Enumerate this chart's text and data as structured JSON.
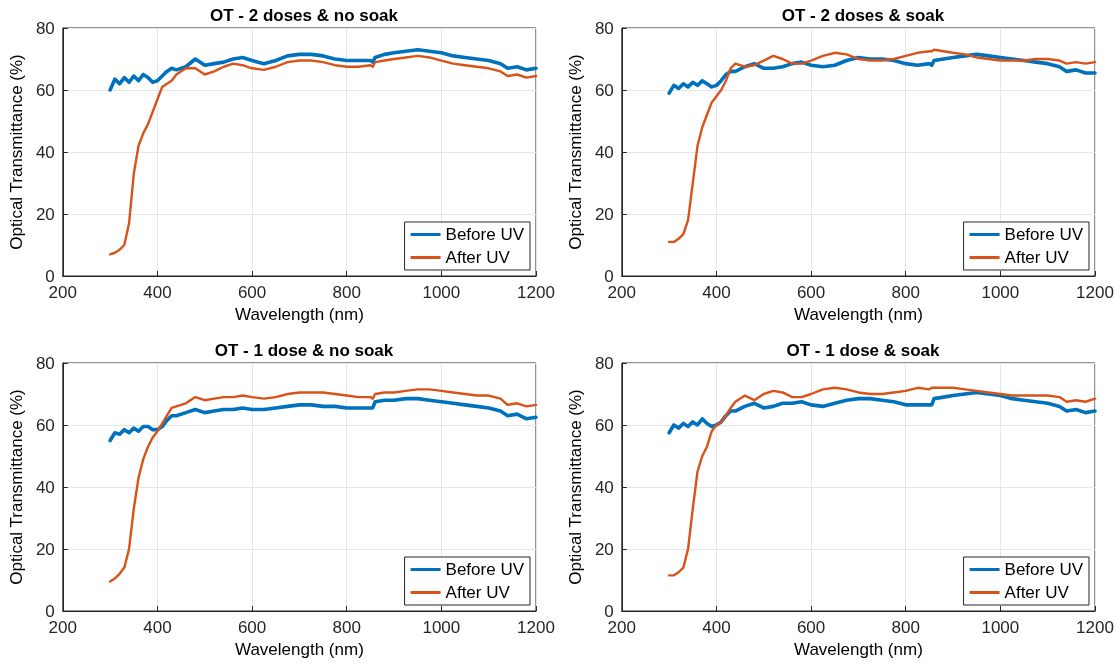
{
  "chart_data": [
    {
      "type": "line",
      "title": "OT - 2 doses & no soak",
      "xlabel": "Wavelength (nm)",
      "ylabel": "Optical Transmittance (%)",
      "xlim": [
        200,
        1200
      ],
      "xticks": [
        200,
        400,
        600,
        800,
        1000,
        1200
      ],
      "ylim": [
        0,
        80
      ],
      "yticks": [
        0,
        20,
        40,
        60,
        80
      ],
      "grid": true,
      "legend": "bottom right",
      "marker": "none",
      "line_style": "solid",
      "x": [
        300,
        310,
        320,
        330,
        340,
        350,
        360,
        370,
        380,
        390,
        400,
        410,
        420,
        430,
        440,
        460,
        480,
        500,
        520,
        540,
        560,
        580,
        600,
        625,
        650,
        675,
        700,
        725,
        750,
        775,
        800,
        825,
        850,
        855,
        860,
        880,
        900,
        925,
        950,
        975,
        1000,
        1025,
        1050,
        1075,
        1100,
        1125,
        1140,
        1160,
        1180,
        1200
      ],
      "series": [
        {
          "name": "Before UV",
          "color": "#0072bd",
          "values": [
            60,
            63.5,
            62,
            64,
            62.5,
            64.5,
            63,
            65,
            64,
            62.5,
            63,
            64.5,
            66,
            67,
            66.5,
            67.5,
            70,
            68,
            68.5,
            69,
            70,
            70.5,
            69.5,
            68.5,
            69.5,
            71,
            71.5,
            71.5,
            71,
            70,
            69.5,
            69.5,
            69.5,
            69,
            70.5,
            71.5,
            72,
            72.5,
            73,
            72.5,
            72,
            71,
            70.5,
            70,
            69.5,
            68.5,
            67,
            67.5,
            66.5,
            67
          ]
        },
        {
          "name": "After UV",
          "color": "#d95319",
          "values": [
            7,
            7.5,
            8.5,
            10,
            17,
            33,
            42,
            46,
            49,
            53,
            57,
            61,
            62,
            63,
            65,
            67,
            67,
            65,
            66,
            67.5,
            68.5,
            68,
            67,
            66.5,
            67.5,
            69,
            69.5,
            69.5,
            69,
            68,
            67.5,
            67.5,
            68,
            67.5,
            69,
            69.5,
            70,
            70.5,
            71,
            70.5,
            69.5,
            68.5,
            68,
            67.5,
            67,
            66,
            64.5,
            65,
            64,
            64.5
          ]
        }
      ]
    },
    {
      "type": "line",
      "title": "OT - 2 doses & soak",
      "xlabel": "Wavelength (nm)",
      "ylabel": "Optical Transmittance (%)",
      "xlim": [
        200,
        1200
      ],
      "xticks": [
        200,
        400,
        600,
        800,
        1000,
        1200
      ],
      "ylim": [
        0,
        80
      ],
      "yticks": [
        0,
        20,
        40,
        60,
        80
      ],
      "grid": true,
      "legend": "bottom right",
      "marker": "none",
      "line_style": "solid",
      "x": [
        300,
        310,
        320,
        330,
        340,
        350,
        360,
        370,
        380,
        390,
        400,
        410,
        420,
        430,
        440,
        460,
        480,
        500,
        520,
        540,
        560,
        580,
        600,
        625,
        650,
        675,
        700,
        725,
        750,
        775,
        800,
        825,
        850,
        855,
        860,
        880,
        900,
        925,
        950,
        975,
        1000,
        1025,
        1050,
        1075,
        1100,
        1125,
        1140,
        1160,
        1180,
        1200
      ],
      "series": [
        {
          "name": "Before UV",
          "color": "#0072bd",
          "values": [
            59,
            61.5,
            60.5,
            62,
            61,
            62.5,
            61.5,
            63,
            62,
            61,
            61.5,
            63,
            65,
            66,
            66,
            67.5,
            68.5,
            67,
            67,
            67.5,
            68.5,
            69,
            68,
            67.5,
            68,
            69.5,
            70.5,
            70,
            70,
            69.5,
            68.5,
            68,
            68.5,
            68,
            69.5,
            70,
            70.5,
            71,
            71.5,
            71,
            70.5,
            70,
            69.5,
            69,
            68.5,
            67.5,
            66,
            66.5,
            65.5,
            65.5
          ]
        },
        {
          "name": "After UV",
          "color": "#d95319",
          "values": [
            11,
            11,
            12,
            13.5,
            18,
            30,
            42,
            48,
            52,
            56,
            58,
            60,
            63,
            67,
            68.5,
            67.5,
            68,
            69.5,
            71,
            70,
            68.5,
            68.5,
            69.5,
            71,
            72,
            71.5,
            70,
            69.5,
            69.5,
            70,
            71,
            72,
            72.5,
            72.5,
            73,
            72.5,
            72,
            71.5,
            70.5,
            70,
            69.5,
            69.5,
            69.5,
            70,
            70,
            69.5,
            68.5,
            69,
            68.5,
            69
          ]
        }
      ]
    },
    {
      "type": "line",
      "title": "OT - 1 dose & no soak",
      "xlabel": "Wavelength (nm)",
      "ylabel": "Optical Transmittance (%)",
      "xlim": [
        200,
        1200
      ],
      "xticks": [
        200,
        400,
        600,
        800,
        1000,
        1200
      ],
      "ylim": [
        0,
        80
      ],
      "yticks": [
        0,
        20,
        40,
        60,
        80
      ],
      "grid": true,
      "legend": "bottom right",
      "marker": "none",
      "line_style": "solid",
      "x": [
        300,
        310,
        320,
        330,
        340,
        350,
        360,
        370,
        380,
        390,
        400,
        410,
        420,
        430,
        440,
        460,
        480,
        500,
        520,
        540,
        560,
        580,
        600,
        625,
        650,
        675,
        700,
        725,
        750,
        775,
        800,
        825,
        850,
        855,
        860,
        880,
        900,
        925,
        950,
        975,
        1000,
        1025,
        1050,
        1075,
        1100,
        1125,
        1140,
        1160,
        1180,
        1200
      ],
      "series": [
        {
          "name": "Before UV",
          "color": "#0072bd",
          "values": [
            55,
            57.5,
            57,
            58.5,
            57.5,
            59,
            58,
            59.5,
            59.5,
            58.5,
            58.5,
            59.5,
            61.5,
            63,
            63,
            64,
            65,
            64,
            64.5,
            65,
            65,
            65.5,
            65,
            65,
            65.5,
            66,
            66.5,
            66.5,
            66,
            66,
            65.5,
            65.5,
            65.5,
            65.5,
            67.5,
            68,
            68,
            68.5,
            68.5,
            68,
            67.5,
            67,
            66.5,
            66,
            65.5,
            64.5,
            63,
            63.5,
            62,
            62.5
          ]
        },
        {
          "name": "After UV",
          "color": "#d95319",
          "values": [
            9.5,
            10.5,
            12,
            14,
            20,
            33,
            43,
            49,
            53,
            56,
            58,
            60.5,
            63,
            65.5,
            66,
            67,
            69,
            68,
            68.5,
            69,
            69,
            69.5,
            69,
            68.5,
            69,
            70,
            70.5,
            70.5,
            70.5,
            70,
            69.5,
            69,
            69,
            68.5,
            70,
            70.5,
            70.5,
            71,
            71.5,
            71.5,
            71,
            70.5,
            70,
            69.5,
            69.5,
            68.5,
            66.5,
            67,
            66,
            66.5
          ]
        }
      ]
    },
    {
      "type": "line",
      "title": "OT - 1 dose & soak",
      "xlabel": "Wavelength (nm)",
      "ylabel": "Optical Transmittance (%)",
      "xlim": [
        200,
        1200
      ],
      "xticks": [
        200,
        400,
        600,
        800,
        1000,
        1200
      ],
      "ylim": [
        0,
        80
      ],
      "yticks": [
        0,
        20,
        40,
        60,
        80
      ],
      "grid": true,
      "legend": "bottom right",
      "marker": "none",
      "line_style": "solid",
      "x": [
        300,
        310,
        320,
        330,
        340,
        350,
        360,
        370,
        380,
        390,
        400,
        410,
        420,
        430,
        440,
        460,
        480,
        500,
        520,
        540,
        560,
        580,
        600,
        625,
        650,
        675,
        700,
        725,
        750,
        775,
        800,
        825,
        850,
        855,
        860,
        880,
        900,
        925,
        950,
        975,
        1000,
        1025,
        1050,
        1075,
        1100,
        1125,
        1140,
        1160,
        1180,
        1200
      ],
      "series": [
        {
          "name": "Before UV",
          "color": "#0072bd",
          "values": [
            57.5,
            60,
            59,
            60.5,
            59.5,
            61,
            60,
            62,
            60.5,
            59.5,
            60,
            61,
            63,
            64.5,
            64.5,
            66,
            67,
            65.5,
            66,
            67,
            67,
            67.5,
            66.5,
            66,
            67,
            68,
            68.5,
            68.5,
            68,
            67.5,
            66.5,
            66.5,
            66.5,
            66.5,
            68.5,
            69,
            69.5,
            70,
            70.5,
            70,
            69.5,
            68.5,
            68,
            67.5,
            67,
            66,
            64.5,
            65,
            64,
            64.5
          ]
        },
        {
          "name": "After UV",
          "color": "#d95319",
          "values": [
            11.5,
            11.5,
            12.5,
            14,
            20,
            33,
            45,
            50,
            53,
            58,
            60,
            61,
            63,
            65.5,
            67.5,
            69.5,
            68,
            70,
            71,
            70.5,
            69,
            69,
            70,
            71.5,
            72,
            71.5,
            70.5,
            70,
            70,
            70.5,
            71,
            72,
            71.5,
            72,
            72,
            72,
            72,
            71.5,
            71,
            70.5,
            70,
            69.5,
            69.5,
            69.5,
            69.5,
            69,
            67.5,
            68,
            67.5,
            68.5
          ]
        }
      ]
    }
  ]
}
